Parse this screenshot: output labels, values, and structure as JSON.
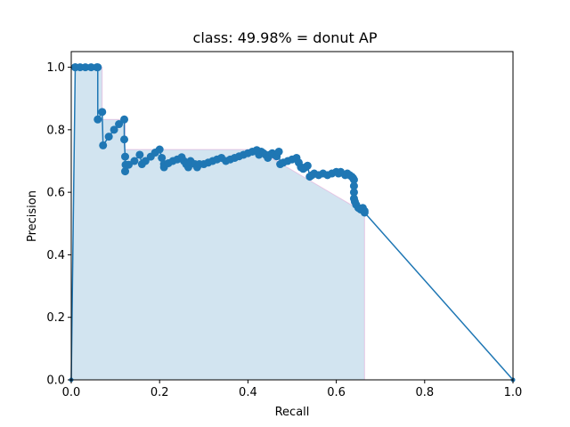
{
  "chart_data": {
    "type": "line",
    "title": "class: 49.98% = donut AP",
    "xlabel": "Recall",
    "ylabel": "Precision",
    "xlim": [
      0,
      1
    ],
    "ylim": [
      0,
      1.05
    ],
    "xticks": [
      "0.0",
      "0.2",
      "0.4",
      "0.6",
      "0.8",
      "1.0"
    ],
    "yticks": [
      "0.0",
      "0.2",
      "0.4",
      "0.6",
      "0.8",
      "1.0"
    ],
    "grid": false,
    "colors": {
      "line": "#1f77b4",
      "fill": "#1f77b4",
      "envelope": "#e377c2"
    },
    "series": [
      {
        "values_x": [
          0.0,
          0.009,
          0.009,
          0.02,
          0.032,
          0.045,
          0.058,
          0.06,
          0.06,
          0.07,
          0.072,
          0.085,
          0.097,
          0.108,
          0.12,
          0.12,
          0.122,
          0.122,
          0.123,
          0.13,
          0.143,
          0.155,
          0.16,
          0.168,
          0.18,
          0.19,
          0.2,
          0.205,
          0.21,
          0.21,
          0.22,
          0.23,
          0.24,
          0.25,
          0.255,
          0.26,
          0.265,
          0.27,
          0.28,
          0.285,
          0.29,
          0.3,
          0.31,
          0.32,
          0.33,
          0.34,
          0.35,
          0.36,
          0.37,
          0.38,
          0.39,
          0.4,
          0.41,
          0.42,
          0.425,
          0.43,
          0.435,
          0.44,
          0.445,
          0.45,
          0.455,
          0.46,
          0.465,
          0.47,
          0.473,
          0.48,
          0.49,
          0.5,
          0.51,
          0.515,
          0.52,
          0.525,
          0.53,
          0.535,
          0.54,
          0.545,
          0.55,
          0.56,
          0.57,
          0.58,
          0.59,
          0.6,
          0.605,
          0.61,
          0.62,
          0.625,
          0.63,
          0.635,
          0.638,
          0.64,
          0.64,
          0.64,
          0.64,
          0.642,
          0.645,
          0.65,
          0.655,
          0.66,
          0.664,
          0.664,
          1.0
        ],
        "values_y": [
          0.0,
          1.0,
          1.0,
          1.0,
          1.0,
          1.0,
          1.0,
          1.0,
          0.833,
          0.857,
          0.75,
          0.778,
          0.8,
          0.818,
          0.833,
          0.769,
          0.714,
          0.667,
          0.688,
          0.688,
          0.7,
          0.72,
          0.69,
          0.7,
          0.714,
          0.727,
          0.737,
          0.71,
          0.68,
          0.69,
          0.693,
          0.7,
          0.705,
          0.712,
          0.7,
          0.69,
          0.68,
          0.7,
          0.69,
          0.68,
          0.69,
          0.69,
          0.695,
          0.7,
          0.705,
          0.71,
          0.7,
          0.705,
          0.71,
          0.715,
          0.72,
          0.725,
          0.73,
          0.735,
          0.72,
          0.73,
          0.725,
          0.72,
          0.71,
          0.72,
          0.725,
          0.72,
          0.715,
          0.73,
          0.69,
          0.695,
          0.7,
          0.705,
          0.71,
          0.695,
          0.68,
          0.675,
          0.68,
          0.685,
          0.65,
          0.655,
          0.66,
          0.655,
          0.66,
          0.655,
          0.66,
          0.665,
          0.66,
          0.665,
          0.655,
          0.66,
          0.655,
          0.65,
          0.645,
          0.64,
          0.62,
          0.6,
          0.58,
          0.57,
          0.56,
          0.55,
          0.545,
          0.55,
          0.54,
          0.535,
          0.0
        ]
      }
    ],
    "envelope": {
      "x": [
        0.0,
        0.009,
        0.07,
        0.07,
        0.122,
        0.122,
        0.42,
        0.42,
        0.664,
        0.664
      ],
      "y": [
        0.0,
        1.0,
        1.0,
        0.833,
        0.833,
        0.737,
        0.737,
        0.737,
        0.535,
        0.0
      ]
    }
  }
}
